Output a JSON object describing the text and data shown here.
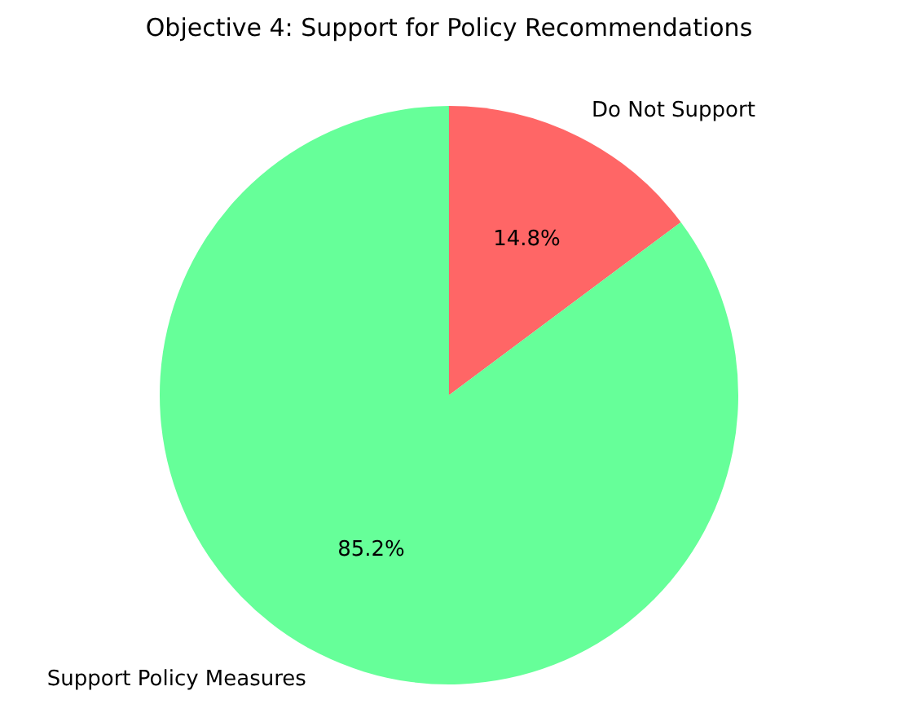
{
  "chart_data": {
    "type": "pie",
    "title": "Objective 4: Support for Policy Recommendations",
    "categories": [
      "Do Not Support",
      "Support Policy Measures"
    ],
    "values": [
      14.8,
      85.2
    ],
    "colors": [
      "#ff6666",
      "#66ff99"
    ],
    "value_labels": [
      "14.8%",
      "85.2%"
    ],
    "legend": false
  }
}
